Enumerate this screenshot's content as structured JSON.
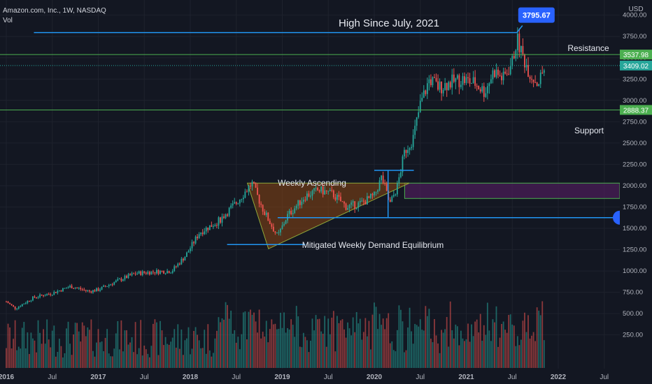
{
  "header": {
    "symbol": "Amazon.com, Inc., 1W, NASDAQ",
    "indicator": "Vol",
    "currency": "USD"
  },
  "colors": {
    "background": "#131722",
    "grid": "#1e222d",
    "up": "#26a69a",
    "down": "#ef5350",
    "blue_line": "#2962ff",
    "light_blue": "#2196f3",
    "green_line": "#4caf50",
    "triangle_fill": "#8b4513",
    "zone_fill": "#4a1d57"
  },
  "chart_data": {
    "type": "candlestick",
    "title": "Amazon.com, Inc., 1W, NASDAQ",
    "y_axis": {
      "label": "USD",
      "ticks": [
        "4000.00",
        "3750.00",
        "3500.00",
        "3250.00",
        "3000.00",
        "2750.00",
        "2500.00",
        "2250.00",
        "2000.00",
        "1750.00",
        "1500.00",
        "1250.00",
        "1000.00",
        "750.00",
        "500.00",
        "250.00"
      ],
      "tick_values": [
        4000,
        3750,
        3500,
        3250,
        3000,
        2750,
        2500,
        2250,
        2000,
        1750,
        1500,
        1250,
        1000,
        750,
        500,
        250
      ]
    },
    "x_axis": {
      "ticks": [
        "2016",
        "Jul",
        "2017",
        "Jul",
        "2018",
        "Jul",
        "2019",
        "Jul",
        "2020",
        "Jul",
        "2021",
        "Jul",
        "2022",
        "Jul"
      ],
      "tick_times": [
        2016.0,
        2016.5,
        2017.0,
        2017.5,
        2018.0,
        2018.5,
        2019.0,
        2019.5,
        2020.0,
        2020.5,
        2021.0,
        2021.5,
        2022.0,
        2022.5
      ]
    },
    "price_path": [
      [
        2016.0,
        640
      ],
      [
        2016.1,
        560
      ],
      [
        2016.3,
        690
      ],
      [
        2016.5,
        740
      ],
      [
        2016.7,
        820
      ],
      [
        2016.9,
        760
      ],
      [
        2017.0,
        780
      ],
      [
        2017.2,
        880
      ],
      [
        2017.4,
        970
      ],
      [
        2017.6,
        990
      ],
      [
        2017.8,
        1000
      ],
      [
        2017.95,
        1180
      ],
      [
        2018.1,
        1450
      ],
      [
        2018.3,
        1580
      ],
      [
        2018.5,
        1800
      ],
      [
        2018.67,
        2030
      ],
      [
        2018.8,
        1700
      ],
      [
        2018.95,
        1400
      ],
      [
        2019.05,
        1640
      ],
      [
        2019.25,
        1880
      ],
      [
        2019.4,
        1950
      ],
      [
        2019.55,
        1900
      ],
      [
        2019.7,
        1750
      ],
      [
        2019.85,
        1790
      ],
      [
        2020.0,
        1880
      ],
      [
        2020.08,
        2100
      ],
      [
        2020.17,
        1780
      ],
      [
        2020.25,
        1990
      ],
      [
        2020.33,
        2400
      ],
      [
        2020.42,
        2550
      ],
      [
        2020.5,
        2950
      ],
      [
        2020.6,
        3250
      ],
      [
        2020.7,
        3150
      ],
      [
        2020.8,
        3200
      ],
      [
        2020.95,
        3250
      ],
      [
        2021.1,
        3200
      ],
      [
        2021.2,
        3100
      ],
      [
        2021.3,
        3350
      ],
      [
        2021.4,
        3250
      ],
      [
        2021.5,
        3450
      ],
      [
        2021.55,
        3720
      ],
      [
        2021.62,
        3500
      ],
      [
        2021.7,
        3300
      ],
      [
        2021.78,
        3200
      ],
      [
        2021.86,
        3409
      ]
    ],
    "annotations": {
      "title_text": "High Since July, 2021",
      "high_label": "3795.67",
      "high_value": 3795.67,
      "resistance_label": "Resistance",
      "resistance_value": 3537.98,
      "resistance_tag": "3537.98",
      "support_label": "Support",
      "support_value": 2888.37,
      "support_tag": "2888.37",
      "last_price_tag": "3409.02",
      "last_price_value": 3409.02,
      "weekly_ascending_label": "Weekly Ascending",
      "demand_label": "Mitigated Weekly Demand Equilibrium",
      "demand_level": 1625,
      "zone_range": [
        1850,
        2030
      ]
    }
  }
}
